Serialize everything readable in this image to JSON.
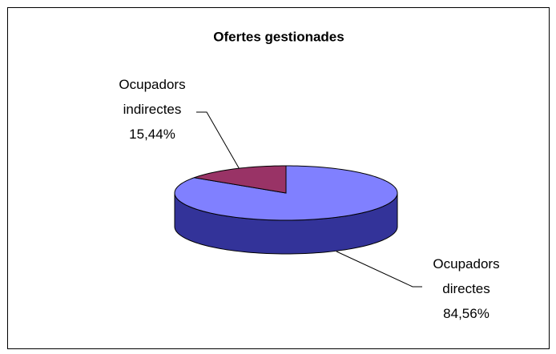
{
  "chart_data": {
    "type": "pie",
    "title": "Ofertes gestionades",
    "categories": [
      "Ocupadors directes",
      "Ocupadors indirectes"
    ],
    "values": [
      84.56,
      15.44
    ],
    "value_labels": [
      "84,56%",
      "15,44%"
    ],
    "colors": [
      "#8080ff",
      "#993366"
    ],
    "side_colors": [
      "#333399",
      "#4d1a33"
    ]
  }
}
